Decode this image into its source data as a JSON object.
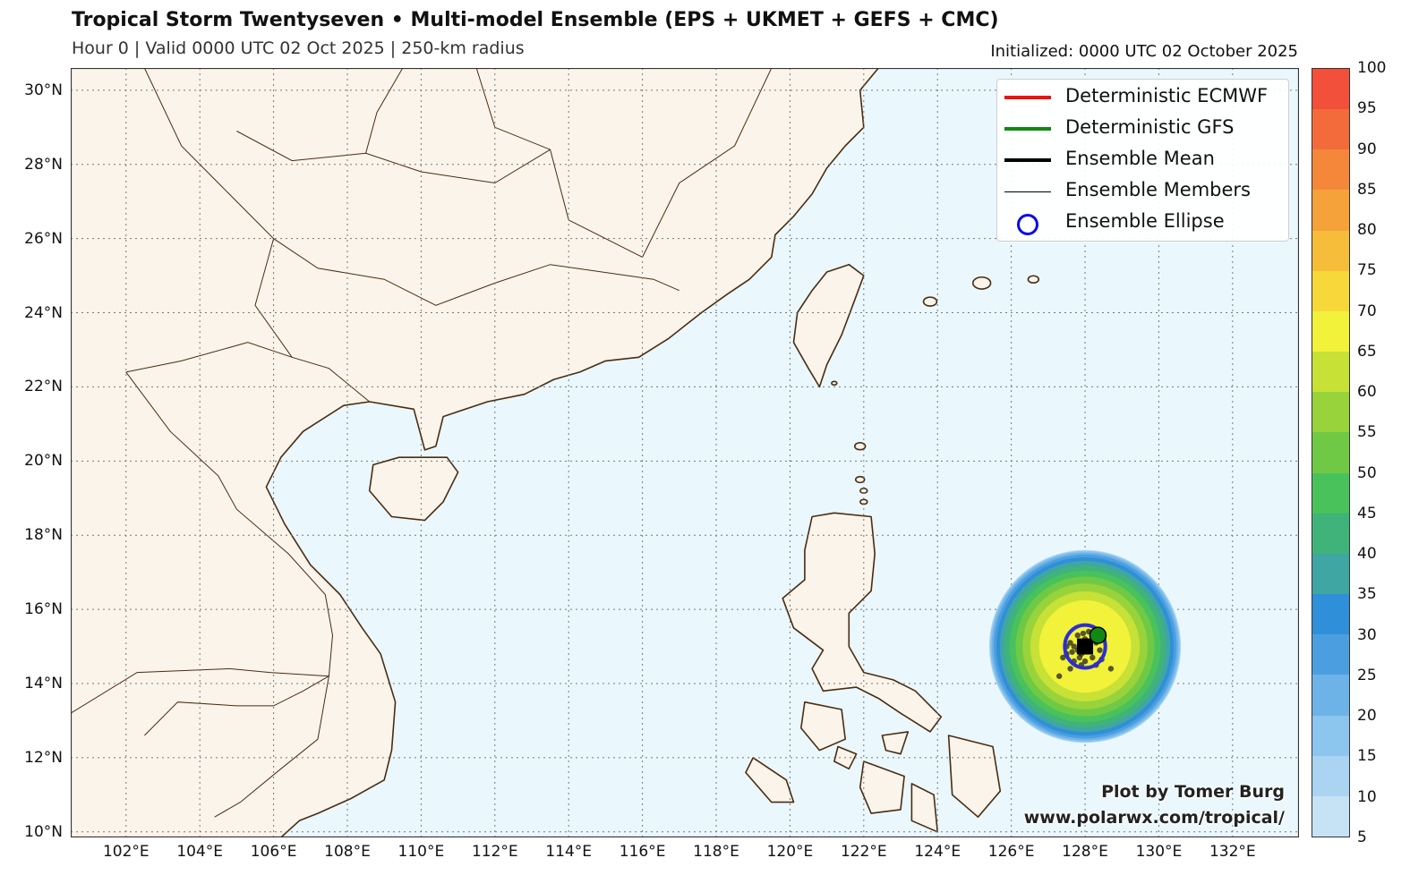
{
  "header": {
    "title": "Tropical Storm Twentyseven • Multi-model Ensemble (EPS + UKMET + GEFS + CMC)",
    "subtitle": "Hour 0 | Valid 0000 UTC 02 Oct 2025 | 250-km radius",
    "initialized": "Initialized: 0000 UTC 02 October 2025"
  },
  "map": {
    "lon_range": [
      100.5,
      133.8
    ],
    "lat_range": [
      9.85,
      30.6
    ],
    "lat_ticks": [
      {
        "value": 10,
        "label": "10°N"
      },
      {
        "value": 12,
        "label": "12°N"
      },
      {
        "value": 14,
        "label": "14°N"
      },
      {
        "value": 16,
        "label": "16°N"
      },
      {
        "value": 18,
        "label": "18°N"
      },
      {
        "value": 20,
        "label": "20°N"
      },
      {
        "value": 22,
        "label": "22°N"
      },
      {
        "value": 24,
        "label": "24°N"
      },
      {
        "value": 26,
        "label": "26°N"
      },
      {
        "value": 28,
        "label": "28°N"
      },
      {
        "value": 30,
        "label": "30°N"
      }
    ],
    "lon_ticks": [
      {
        "value": 102,
        "label": "102°E"
      },
      {
        "value": 104,
        "label": "104°E"
      },
      {
        "value": 106,
        "label": "106°E"
      },
      {
        "value": 108,
        "label": "108°E"
      },
      {
        "value": 110,
        "label": "110°E"
      },
      {
        "value": 112,
        "label": "112°E"
      },
      {
        "value": 114,
        "label": "114°E"
      },
      {
        "value": 116,
        "label": "116°E"
      },
      {
        "value": 118,
        "label": "118°E"
      },
      {
        "value": 120,
        "label": "120°E"
      },
      {
        "value": 122,
        "label": "122°E"
      },
      {
        "value": 124,
        "label": "124°E"
      },
      {
        "value": 126,
        "label": "126°E"
      },
      {
        "value": 128,
        "label": "128°E"
      },
      {
        "value": 130,
        "label": "130°E"
      },
      {
        "value": 132,
        "label": "132°E"
      }
    ],
    "colors": {
      "ocean": "#eaf8fd",
      "land": "#fbf4ea",
      "coast": "#4a2c12",
      "grid": "#777777"
    },
    "storm_center": {
      "lon": 128.0,
      "lat": 15.0
    },
    "ellipse_radius_deg": 0.55,
    "gfs_point": {
      "lon": 128.35,
      "lat": 15.3
    },
    "mean_marker": {
      "lon": 128.0,
      "lat": 15.0
    },
    "members": [
      [
        127.6,
        15.1
      ],
      [
        127.8,
        15.3
      ],
      [
        128.1,
        15.4
      ],
      [
        128.3,
        15.1
      ],
      [
        127.9,
        14.8
      ],
      [
        128.2,
        14.7
      ],
      [
        127.7,
        14.6
      ],
      [
        128.0,
        15.2
      ],
      [
        127.5,
        15.0
      ],
      [
        128.4,
        14.9
      ],
      [
        127.9,
        14.5
      ],
      [
        128.1,
        14.9
      ],
      [
        127.8,
        14.9
      ],
      [
        128.5,
        15.2
      ],
      [
        127.4,
        14.7
      ],
      [
        128.2,
        15.3
      ],
      [
        127.6,
        14.4
      ],
      [
        128.7,
        14.4
      ],
      [
        127.3,
        14.2
      ],
      [
        128.0,
        14.6
      ],
      [
        127.7,
        15.0
      ],
      [
        128.3,
        14.5
      ],
      [
        127.5,
        14.8
      ],
      [
        128.1,
        15.1
      ],
      [
        127.95,
        15.35
      ],
      [
        127.85,
        14.7
      ],
      [
        128.45,
        14.65
      ],
      [
        127.65,
        14.85
      ]
    ]
  },
  "probability": {
    "center_value": 65,
    "radius_deg": 2.6,
    "levels": [
      5,
      10,
      15,
      20,
      25,
      30,
      35,
      40,
      45,
      50,
      55,
      60,
      65,
      70,
      75,
      80,
      85,
      90,
      95,
      100
    ],
    "colors": [
      "#c6e3f6",
      "#aad4f2",
      "#8cc5ee",
      "#6eb3e7",
      "#4b9fe0",
      "#2f8fd8",
      "#40a6a3",
      "#3fb37a",
      "#49c25c",
      "#70c945",
      "#98d33c",
      "#c7e136",
      "#f2f23a",
      "#f6d83a",
      "#f6bd3a",
      "#f5a23a",
      "#f4873a",
      "#f36b3a",
      "#f2503a",
      "#ef3a3a"
    ]
  },
  "colorbar": {
    "labels": [
      "5",
      "10",
      "15",
      "20",
      "25",
      "30",
      "35",
      "40",
      "45",
      "50",
      "55",
      "60",
      "65",
      "70",
      "75",
      "80",
      "85",
      "90",
      "95",
      "100"
    ]
  },
  "legend": {
    "items": [
      {
        "label": "Deterministic ECMWF",
        "kind": "line",
        "color": "#ee1111"
      },
      {
        "label": "Deterministic GFS",
        "kind": "line",
        "color": "#118811"
      },
      {
        "label": "Ensemble Mean",
        "kind": "line",
        "color": "#000000"
      },
      {
        "label": "Ensemble Members",
        "kind": "thin",
        "color": "#000000"
      },
      {
        "label": "Ensemble Ellipse",
        "kind": "circle",
        "color": "#0a0ae6"
      }
    ]
  },
  "credit": {
    "line1": "Plot by Tomer Burg",
    "line2": "www.polarwx.com/tropical/"
  }
}
